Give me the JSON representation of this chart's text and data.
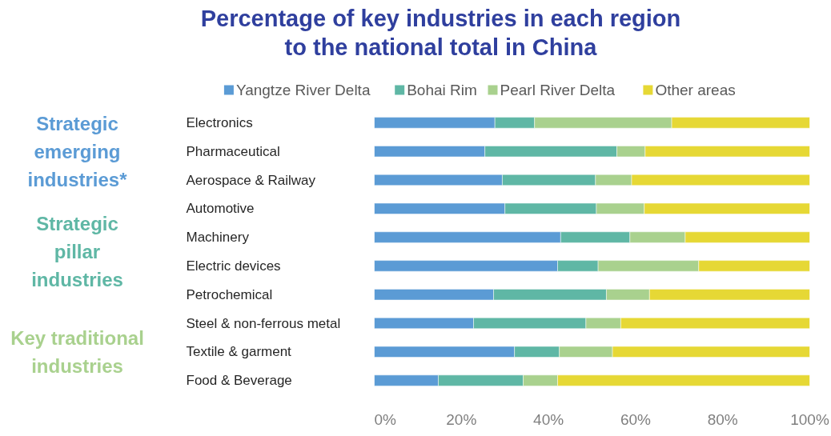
{
  "chart_data": {
    "type": "bar",
    "orientation": "horizontal",
    "stacked": true,
    "title": "Percentage of key industries in each region\nto the national total in China",
    "categories": [
      "Electronics",
      "Pharmaceutical",
      "Aerospace & Railway",
      "Automotive",
      "Machinery",
      "Electric devices",
      "Petrochemical",
      "Steel & non-ferrous metal",
      "Textile & garment",
      "Food & Beverage"
    ],
    "series": [
      {
        "name": "Yangtze River Delta",
        "color": "#5b9bd5",
        "values": [
          27.7,
          25.4,
          29.4,
          30.0,
          42.8,
          42.1,
          27.4,
          22.8,
          32.2,
          14.7
        ]
      },
      {
        "name": "Bohai Rim",
        "color": "#5fb7a5",
        "values": [
          9.1,
          30.3,
          21.4,
          21.0,
          15.9,
          9.3,
          25.9,
          25.8,
          10.3,
          19.5
        ]
      },
      {
        "name": "Pearl River Delta",
        "color": "#a9d18e",
        "values": [
          31.5,
          6.5,
          8.3,
          11.0,
          12.7,
          23.1,
          9.9,
          8.0,
          12.2,
          7.9
        ]
      },
      {
        "name": "Other areas",
        "color": "#e6d835",
        "values": [
          31.7,
          37.8,
          40.9,
          38.0,
          28.6,
          25.5,
          36.8,
          43.4,
          45.3,
          57.9
        ]
      }
    ],
    "xlim": [
      0,
      100
    ],
    "xticks": [
      {
        "value": 0,
        "label": "0%"
      },
      {
        "value": 20,
        "label": "20%"
      },
      {
        "value": 40,
        "label": "40%"
      },
      {
        "value": 60,
        "label": "60%"
      },
      {
        "value": 80,
        "label": "80%"
      },
      {
        "value": 100,
        "label": "100%"
      }
    ],
    "annotations": [
      "Strategic\nemerging\nindustries*",
      "Strategic\npillar\nindustries",
      "Key traditional\nindustries"
    ],
    "legend": "top",
    "grid": false
  }
}
